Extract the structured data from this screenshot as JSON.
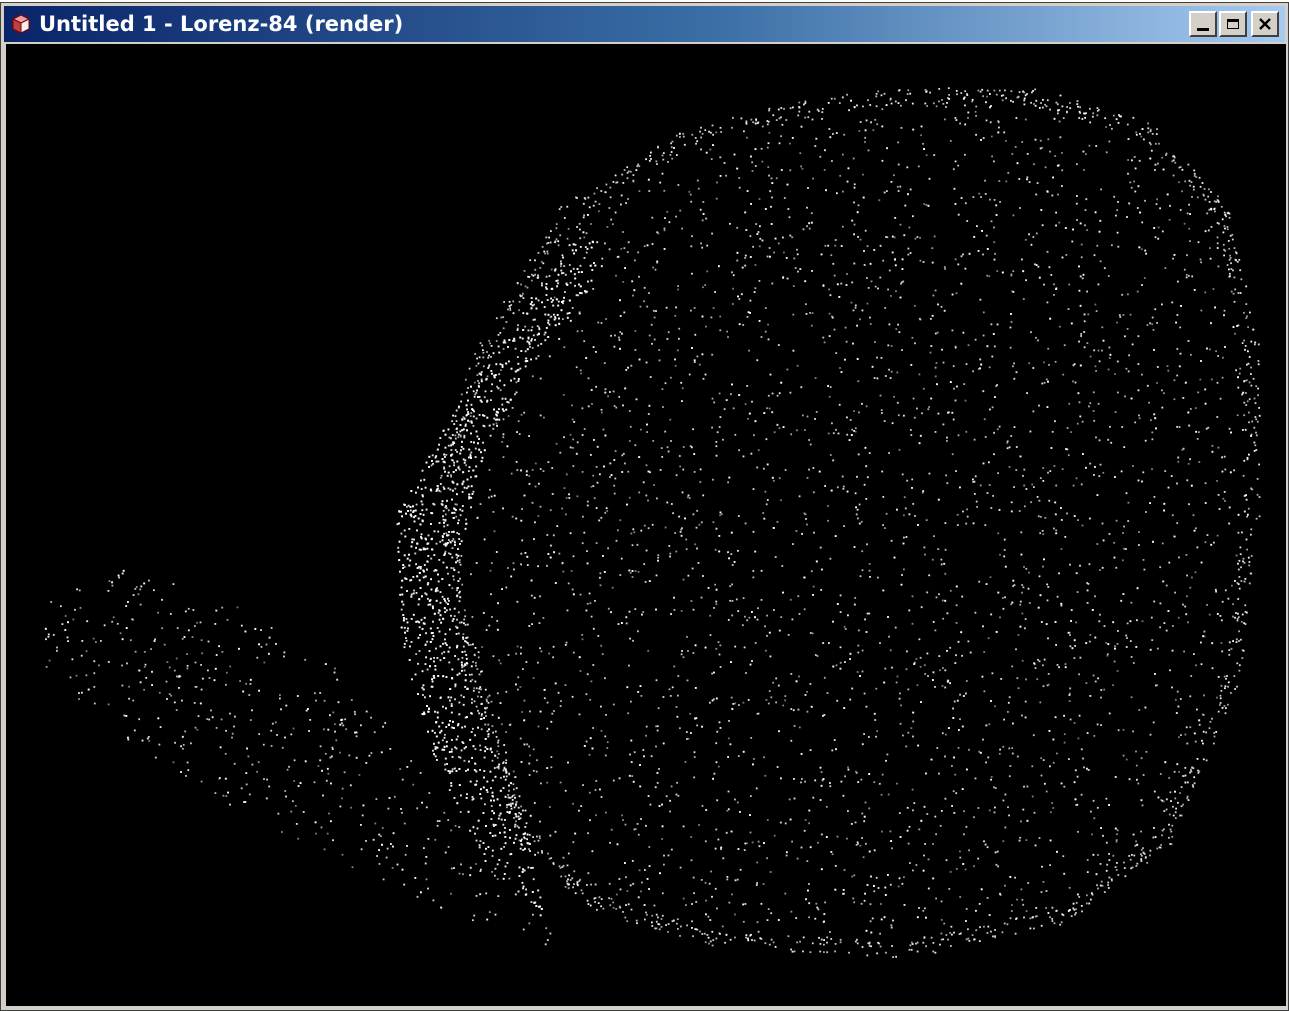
{
  "window": {
    "title": "Untitled 1 - Lorenz-84 (render)",
    "app_icon": "cube-icon",
    "controls": [
      {
        "name": "minimize",
        "icon": "minimize-icon"
      },
      {
        "name": "maximize",
        "icon": "maximize-icon"
      },
      {
        "name": "close",
        "icon": "close-icon"
      }
    ]
  },
  "render": {
    "subject": "Lorenz-84",
    "background_color": "#000000",
    "point_color": "#ffffff"
  }
}
